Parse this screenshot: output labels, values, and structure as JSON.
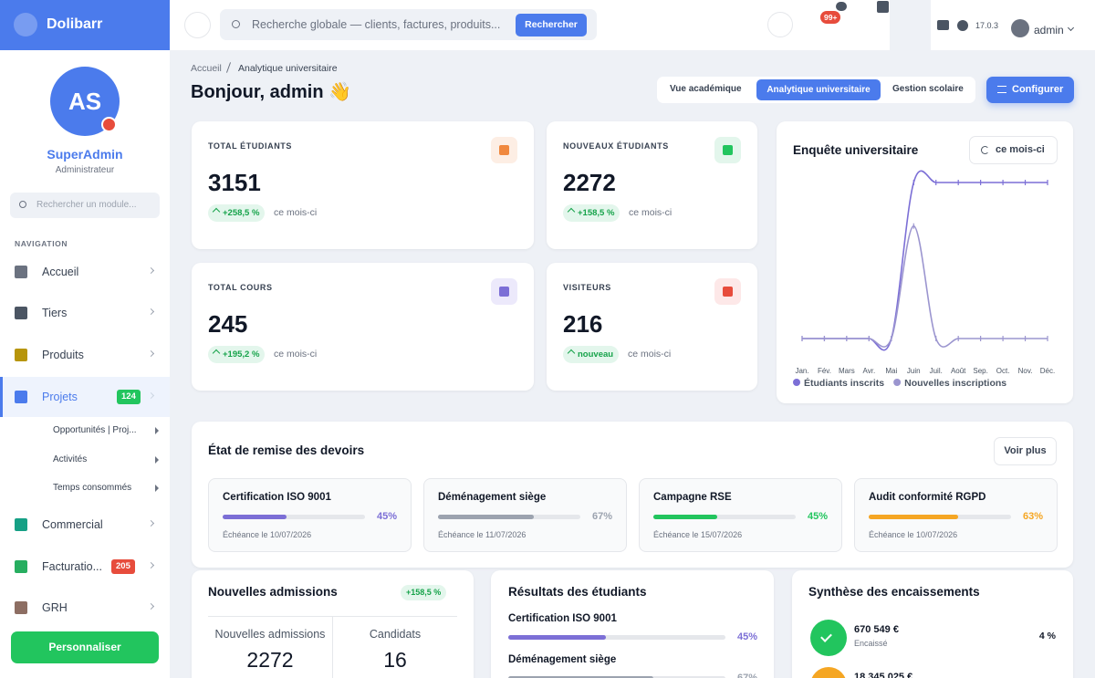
{
  "brand": "Dolibarr",
  "profile": {
    "initials": "AS",
    "name": "SuperAdmin",
    "role": "Administrateur"
  },
  "sidebar": {
    "search": "Rechercher un module...",
    "heading": "NAVIGATION",
    "items": [
      {
        "label": "Accueil"
      },
      {
        "label": "Tiers"
      },
      {
        "label": "Produits"
      },
      {
        "label": "Projets",
        "badge": "124"
      },
      {
        "label": "Commercial"
      },
      {
        "label": "Facturatio...",
        "badge": "205"
      },
      {
        "label": "GRH"
      }
    ],
    "subitems": [
      "Opportunités | Proj...",
      "Activités",
      "Temps consommés"
    ],
    "button": "Personnaliser"
  },
  "topbar": {
    "search": "Recherche globale — clients, factures, produits...",
    "search_button": "Rechercher",
    "notifications": "99+",
    "version": "17.0.3",
    "user": "admin"
  },
  "header": {
    "breadcrumb": [
      "Accueil",
      "Analytique universitaire"
    ],
    "greeting": "Bonjour, admin 👋",
    "tabs": [
      "Vue académique",
      "Analytique universitaire",
      "Gestion scolaire"
    ],
    "button": "Configurer"
  },
  "stats": [
    {
      "label": "TOTAL ÉTUDIANTS",
      "value": "3151",
      "delta": "+258,5 %",
      "period": "ce mois-ci"
    },
    {
      "label": "NOUVEAUX ÉTUDIANTS",
      "value": "2272",
      "delta": "+158,5 %",
      "period": "ce mois-ci"
    },
    {
      "label": "TOTAL COURS",
      "value": "245",
      "delta": "+195,2 %",
      "period": "ce mois-ci"
    },
    {
      "label": "VISITEURS",
      "value": "216",
      "delta": "nouveau",
      "period": "ce mois-ci"
    }
  ],
  "survey_chart": {
    "type": "line",
    "title": "Enquête universitaire",
    "button": "ce mois-ci",
    "categories": [
      "Jan.",
      "Fév.",
      "Mars",
      "Avr.",
      "Mai",
      "Juin",
      "Juil.",
      "Août",
      "Sep.",
      "Oct.",
      "Nov.",
      "Déc."
    ],
    "series": [
      {
        "name": "Étudiants inscrits",
        "color": "#7c6fd6",
        "values": [
          0,
          0,
          0,
          0,
          0,
          3151,
          3151,
          3151,
          3151,
          3151,
          3151,
          3151
        ]
      },
      {
        "name": "Nouvelles inscriptions",
        "color": "#9b95cf",
        "values": [
          0,
          0,
          0,
          0,
          0,
          2272,
          0,
          0,
          0,
          0,
          0,
          0
        ]
      }
    ]
  },
  "assignments": {
    "title": "État de remise des devoirs",
    "button": "Voir plus",
    "items": [
      {
        "title": "Certification ISO 9001",
        "percent": 45,
        "percent_label": "45%",
        "due": "Échéance le 10/07/2026",
        "color": "#7c6fd6"
      },
      {
        "title": "Déménagement siège",
        "percent": 67,
        "percent_label": "67%",
        "due": "Échéance le 11/07/2026",
        "color": "#9ca3af"
      },
      {
        "title": "Campagne RSE",
        "percent": 45,
        "percent_label": "45%",
        "due": "Échéance le 15/07/2026",
        "color": "#22c55e"
      },
      {
        "title": "Audit conformité RGPD",
        "percent": 63,
        "percent_label": "63%",
        "due": "Échéance le 10/07/2026",
        "color": "#f5a623"
      }
    ]
  },
  "admissions": {
    "title": "Nouvelles admissions",
    "delta": "+158,5 %",
    "columns": [
      {
        "label": "Nouvelles admissions",
        "value": "2272"
      },
      {
        "label": "Candidats",
        "value": "16"
      }
    ]
  },
  "results": {
    "title": "Résultats des étudiants",
    "items": [
      {
        "title": "Certification ISO 9001",
        "percent": 45,
        "percent_label": "45%",
        "color": "#7c6fd6"
      },
      {
        "title": "Déménagement siège",
        "percent": 67,
        "percent_label": "67%",
        "color": "#9ca3af"
      }
    ]
  },
  "payments": {
    "title": "Synthèse des encaissements",
    "items": [
      {
        "amount": "670 549 €",
        "label": "Encaissé",
        "share": "4 %"
      },
      {
        "amount": "18 345 025 €"
      }
    ]
  }
}
